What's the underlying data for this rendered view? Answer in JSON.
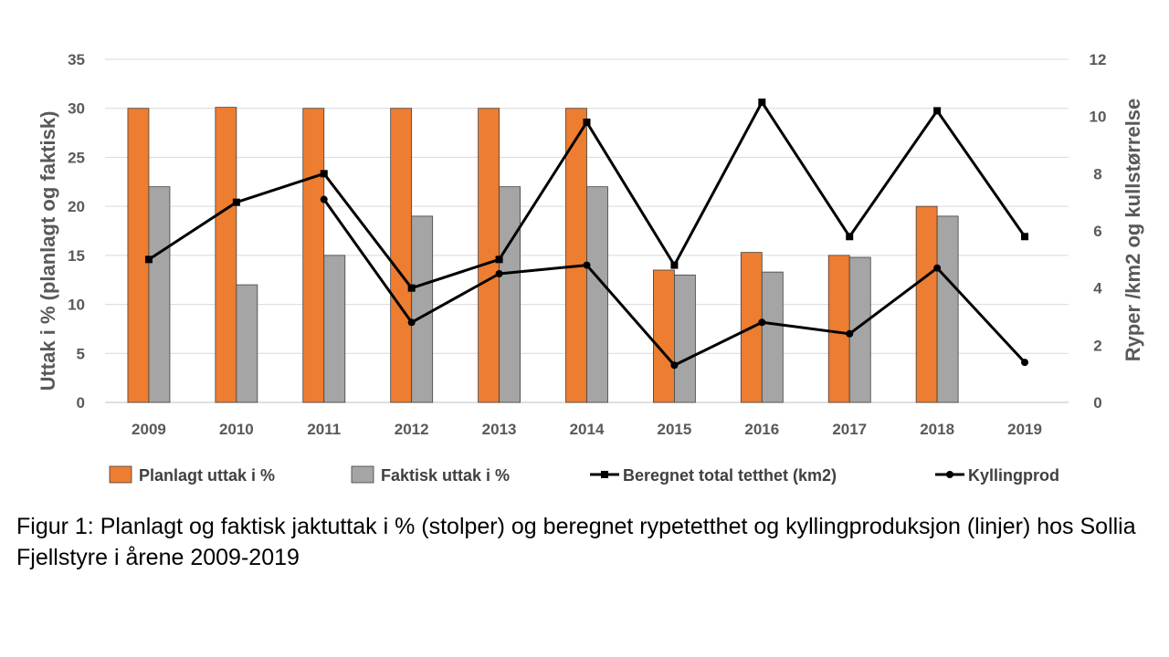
{
  "chart_data": {
    "type": "bar",
    "categories": [
      "2009",
      "2010",
      "2011",
      "2012",
      "2013",
      "2014",
      "2015",
      "2016",
      "2017",
      "2018",
      "2019"
    ],
    "series": [
      {
        "name": "Planlagt uttak i %",
        "kind": "bar",
        "axis": "left",
        "color": "#ED7D31",
        "values": [
          30,
          30.1,
          30,
          30,
          30,
          30,
          13.5,
          15.3,
          15,
          20,
          null
        ]
      },
      {
        "name": "Faktisk uttak i %",
        "kind": "bar",
        "axis": "left",
        "color": "#A5A5A5",
        "values": [
          22,
          12,
          15,
          19,
          22,
          22,
          13,
          13.3,
          14.8,
          19,
          null
        ]
      },
      {
        "name": "Beregnet total tetthet (km2)",
        "kind": "line",
        "axis": "right",
        "marker": "square",
        "color": "#000000",
        "values": [
          5.0,
          7.0,
          8.0,
          4.0,
          5.0,
          9.8,
          4.8,
          10.5,
          5.8,
          10.2,
          5.8
        ]
      },
      {
        "name": "Kyllingprod",
        "kind": "line",
        "axis": "right",
        "marker": "circle",
        "color": "#000000",
        "values": [
          null,
          null,
          7.1,
          2.8,
          4.5,
          4.8,
          1.3,
          2.8,
          2.4,
          4.7,
          1.4
        ]
      }
    ],
    "y_left": {
      "label": "Uttak i % (planlagt og faktisk)",
      "range": [
        0,
        35
      ],
      "ticks": [
        "0",
        "5",
        "10",
        "15",
        "20",
        "25",
        "30",
        "35"
      ]
    },
    "y_right": {
      "label": "Ryper /km2 og kullstørrelse",
      "range": [
        0,
        12
      ],
      "ticks": [
        "0",
        "2",
        "4",
        "6",
        "8",
        "10",
        "12"
      ]
    },
    "grid": true,
    "legend": "bottom"
  },
  "caption": {
    "lead": "Figur 1:",
    "text": " Planlagt og faktisk jaktuttak i % (stolper) og beregnet rypetetthet og kyllingproduksjon (linjer) hos Sollia Fjellstyre i årene 2009-2019"
  }
}
